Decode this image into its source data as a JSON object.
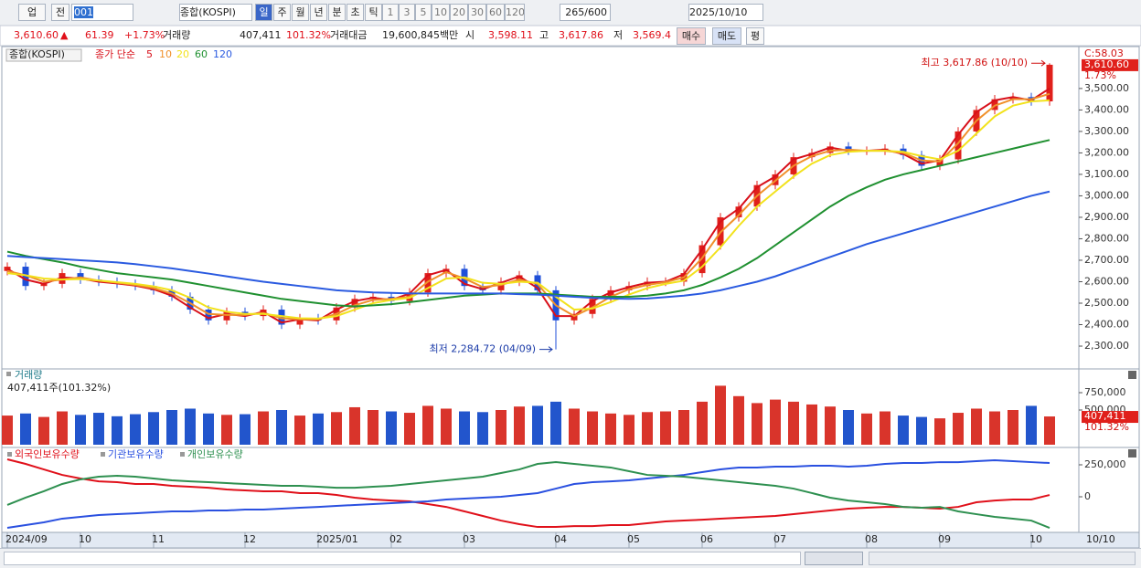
{
  "toolbar": {
    "market": "업",
    "prev": "전",
    "code": "001",
    "name": "종합(KOSPI)",
    "periods": [
      "일",
      "주",
      "월",
      "년",
      "분",
      "초",
      "틱"
    ],
    "intervals": [
      "1",
      "3",
      "5",
      "10",
      "20",
      "30",
      "60",
      "120"
    ],
    "count": "265/600",
    "date": "2025/10/10"
  },
  "quote": {
    "price": "3,610.60",
    "arrow": "▲",
    "change": "61.39",
    "change_pct": "+1.73%",
    "volume_label": "거래량",
    "volume": "407,411",
    "volume_ratio": "101.32%",
    "amount_label": "거래대금",
    "amount": "19,600,845백만",
    "open_label": "시",
    "open": "3,598.11",
    "high_label": "고",
    "high": "3,617.86",
    "low_label": "저",
    "low": "3,569.4",
    "buy": "매수",
    "sell": "매도",
    "avg": "평"
  },
  "axis_end_label": "10/10",
  "chart_data": [
    {
      "type": "candlestick",
      "title": "종합(KOSPI)",
      "ma_label": "종가 단순",
      "categories": [
        "2024/09",
        null,
        null,
        null,
        "10",
        null,
        null,
        null,
        "11",
        null,
        null,
        null,
        null,
        "12",
        null,
        null,
        null,
        "2025/01",
        null,
        null,
        null,
        "02",
        null,
        null,
        null,
        "03",
        null,
        null,
        null,
        null,
        "04",
        null,
        null,
        null,
        "05",
        null,
        null,
        null,
        "06",
        null,
        null,
        null,
        "07",
        null,
        null,
        null,
        null,
        "08",
        null,
        null,
        null,
        "09",
        null,
        null,
        null,
        null,
        "10",
        null
      ],
      "open": [
        2650,
        2670,
        2580,
        2590,
        2640,
        2610,
        2600,
        2590,
        2580,
        2560,
        2530,
        2470,
        2420,
        2460,
        2440,
        2470,
        2400,
        2430,
        2420,
        2480,
        2520,
        2530,
        2510,
        2550,
        2640,
        2660,
        2580,
        2560,
        2600,
        2630,
        2560,
        2420,
        2450,
        2520,
        2560,
        2580,
        2600,
        2600,
        2640,
        2770,
        2900,
        2950,
        3050,
        3100,
        3180,
        3200,
        3230,
        3210,
        3210,
        3220,
        3190,
        3140,
        3170,
        3300,
        3400,
        3450,
        3460,
        3440
      ],
      "high": [
        2690,
        2690,
        2610,
        2660,
        2660,
        2630,
        2620,
        2610,
        2600,
        2580,
        2550,
        2490,
        2480,
        2480,
        2490,
        2490,
        2450,
        2450,
        2500,
        2540,
        2550,
        2550,
        2570,
        2660,
        2680,
        2680,
        2600,
        2620,
        2650,
        2650,
        2580,
        2470,
        2540,
        2580,
        2600,
        2620,
        2620,
        2660,
        2790,
        2920,
        2970,
        3070,
        3120,
        3200,
        3220,
        3250,
        3250,
        3230,
        3240,
        3240,
        3210,
        3190,
        3320,
        3420,
        3470,
        3480,
        3480,
        3617.86
      ],
      "low": [
        2630,
        2560,
        2560,
        2570,
        2590,
        2580,
        2570,
        2560,
        2540,
        2510,
        2450,
        2400,
        2400,
        2420,
        2420,
        2380,
        2380,
        2400,
        2400,
        2460,
        2500,
        2490,
        2490,
        2530,
        2620,
        2560,
        2540,
        2540,
        2580,
        2540,
        2284.72,
        2400,
        2430,
        2500,
        2540,
        2560,
        2580,
        2580,
        2620,
        2750,
        2880,
        2930,
        3030,
        3080,
        3160,
        3180,
        3190,
        3190,
        3190,
        3170,
        3120,
        3120,
        3150,
        3280,
        3380,
        3430,
        3420,
        3420
      ],
      "close": [
        2670,
        2580,
        2590,
        2640,
        2610,
        2600,
        2590,
        2580,
        2560,
        2530,
        2470,
        2420,
        2460,
        2440,
        2470,
        2400,
        2430,
        2420,
        2480,
        2520,
        2530,
        2510,
        2550,
        2640,
        2660,
        2580,
        2560,
        2600,
        2630,
        2560,
        2420,
        2450,
        2520,
        2560,
        2580,
        2600,
        2600,
        2640,
        2770,
        2900,
        2950,
        3050,
        3100,
        3180,
        3200,
        3230,
        3210,
        3210,
        3220,
        3190,
        3140,
        3170,
        3300,
        3400,
        3450,
        3460,
        3440,
        3610.6
      ],
      "up_color": "#e0201b",
      "down_color": "#1f4fd8",
      "series": [
        {
          "name": "5",
          "color": "#d8101a",
          "values": [
            2660,
            2610,
            2590,
            2620,
            2615,
            2600,
            2592,
            2582,
            2565,
            2535,
            2480,
            2430,
            2450,
            2440,
            2460,
            2410,
            2425,
            2420,
            2470,
            2510,
            2525,
            2515,
            2545,
            2630,
            2655,
            2590,
            2565,
            2595,
            2625,
            2570,
            2440,
            2440,
            2510,
            2550,
            2575,
            2595,
            2600,
            2635,
            2750,
            2880,
            2940,
            3040,
            3090,
            3170,
            3195,
            3225,
            3210,
            3210,
            3215,
            3195,
            3150,
            3165,
            3285,
            3390,
            3445,
            3460,
            3445,
            3500
          ]
        },
        {
          "name": "10",
          "color": "#f0902a",
          "values": [
            2650,
            2630,
            2600,
            2610,
            2620,
            2605,
            2595,
            2585,
            2570,
            2545,
            2500,
            2450,
            2445,
            2445,
            2455,
            2430,
            2425,
            2425,
            2450,
            2490,
            2515,
            2520,
            2530,
            2600,
            2645,
            2615,
            2575,
            2585,
            2610,
            2590,
            2490,
            2440,
            2480,
            2530,
            2565,
            2585,
            2598,
            2620,
            2710,
            2830,
            2910,
            3000,
            3070,
            3140,
            3185,
            3210,
            3215,
            3210,
            3210,
            3200,
            3165,
            3160,
            3245,
            3350,
            3420,
            3450,
            3450,
            3475
          ]
        },
        {
          "name": "20",
          "color": "#f2e21c",
          "values": [
            2640,
            2630,
            2615,
            2610,
            2612,
            2606,
            2598,
            2590,
            2578,
            2560,
            2525,
            2480,
            2460,
            2450,
            2450,
            2440,
            2430,
            2428,
            2440,
            2470,
            2500,
            2515,
            2525,
            2570,
            2615,
            2620,
            2595,
            2590,
            2600,
            2595,
            2530,
            2470,
            2475,
            2505,
            2540,
            2570,
            2590,
            2605,
            2670,
            2760,
            2860,
            2950,
            3020,
            3090,
            3150,
            3190,
            3205,
            3210,
            3210,
            3205,
            3185,
            3170,
            3210,
            3290,
            3370,
            3420,
            3440,
            3445
          ]
        },
        {
          "name": "60",
          "color": "#1f9030",
          "values": [
            2740,
            2720,
            2705,
            2690,
            2670,
            2655,
            2640,
            2630,
            2620,
            2610,
            2595,
            2580,
            2565,
            2550,
            2535,
            2520,
            2510,
            2500,
            2490,
            2485,
            2490,
            2495,
            2505,
            2515,
            2525,
            2535,
            2540,
            2545,
            2545,
            2545,
            2540,
            2535,
            2530,
            2530,
            2530,
            2535,
            2545,
            2560,
            2585,
            2620,
            2660,
            2710,
            2770,
            2830,
            2890,
            2950,
            3000,
            3040,
            3075,
            3100,
            3120,
            3140,
            3160,
            3180,
            3200,
            3220,
            3240,
            3260
          ]
        },
        {
          "name": "120",
          "color": "#2a5ae0",
          "values": [
            2720,
            2715,
            2710,
            2705,
            2700,
            2695,
            2690,
            2682,
            2672,
            2662,
            2650,
            2638,
            2625,
            2612,
            2600,
            2590,
            2580,
            2570,
            2560,
            2555,
            2550,
            2548,
            2545,
            2545,
            2545,
            2545,
            2545,
            2545,
            2542,
            2540,
            2535,
            2530,
            2525,
            2522,
            2520,
            2522,
            2528,
            2535,
            2545,
            2560,
            2580,
            2600,
            2625,
            2655,
            2685,
            2715,
            2745,
            2775,
            2800,
            2825,
            2850,
            2875,
            2900,
            2925,
            2950,
            2975,
            3000,
            3020
          ]
        }
      ],
      "ylim": [
        2198,
        3691
      ],
      "yticks": [
        {
          "value": 2300,
          "label": "2,300.00"
        },
        {
          "value": 2400,
          "label": "2,400.00"
        },
        {
          "value": 2500,
          "label": "2,500.00"
        },
        {
          "value": 2600,
          "label": "2,600.00"
        },
        {
          "value": 2700,
          "label": "2,700.00"
        },
        {
          "value": 2800,
          "label": "2,800.00"
        },
        {
          "value": 2900,
          "label": "2,900.00"
        },
        {
          "value": 3000,
          "label": "3,000.00"
        },
        {
          "value": 3100,
          "label": "3,100.00"
        },
        {
          "value": 3200,
          "label": "3,200.00"
        },
        {
          "value": 3300,
          "label": "3,300.00"
        },
        {
          "value": 3400,
          "label": "3,400.00"
        },
        {
          "value": 3500,
          "label": "3,500.00"
        }
      ],
      "last_label": "3,610.60",
      "last_change": "1.73%",
      "corner_label": "C:58.03",
      "annotations": [
        "최고 3,617.86 (10/10)",
        "최저 2,284.72 (04/09)"
      ]
    },
    {
      "type": "bar",
      "title": "거래량",
      "subtitle": "407,411주(101.32%)",
      "values": [
        420000,
        450000,
        400000,
        480000,
        430000,
        460000,
        410000,
        440000,
        470000,
        500000,
        520000,
        450000,
        430000,
        440000,
        480000,
        500000,
        420000,
        450000,
        470000,
        540000,
        500000,
        480000,
        460000,
        560000,
        520000,
        480000,
        470000,
        500000,
        550000,
        560000,
        620000,
        520000,
        480000,
        450000,
        430000,
        470000,
        480000,
        500000,
        620000,
        850000,
        700000,
        600000,
        650000,
        620000,
        580000,
        550000,
        500000,
        450000,
        480000,
        420000,
        400000,
        380000,
        460000,
        520000,
        480000,
        500000,
        560000,
        407411
      ],
      "ylim": [
        0,
        1000000
      ],
      "yticks": [
        {
          "value": 750000,
          "label": "750,000"
        },
        {
          "value": 500000,
          "label": "500,000"
        }
      ],
      "last_label": "407,411",
      "last_ratio": "101.32%"
    },
    {
      "type": "line",
      "series": [
        {
          "name": "외국인보유수량",
          "color": "#e0101a",
          "values": [
            293000,
            257000,
            214000,
            171000,
            143000,
            121000,
            114000,
            100000,
            100000,
            86000,
            79000,
            71000,
            57000,
            50000,
            43000,
            43000,
            29000,
            29000,
            14000,
            -7000,
            -21000,
            -29000,
            -36000,
            -57000,
            -79000,
            -114000,
            -150000,
            -186000,
            -214000,
            -236000,
            -236000,
            -229000,
            -229000,
            -221000,
            -221000,
            -207000,
            -193000,
            -186000,
            -179000,
            -171000,
            -164000,
            -157000,
            -150000,
            -136000,
            -121000,
            -107000,
            -93000,
            -86000,
            -79000,
            -79000,
            -86000,
            -93000,
            -79000,
            -43000,
            -29000,
            -21000,
            -21000,
            14000
          ]
        },
        {
          "name": "기관보유수량",
          "color": "#2a50e0",
          "values": [
            -243000,
            -221000,
            -200000,
            -171000,
            -157000,
            -143000,
            -136000,
            -129000,
            -121000,
            -114000,
            -114000,
            -107000,
            -107000,
            -100000,
            -100000,
            -93000,
            -86000,
            -79000,
            -71000,
            -64000,
            -57000,
            -50000,
            -43000,
            -36000,
            -21000,
            -14000,
            -7000,
            0,
            14000,
            29000,
            64000,
            100000,
            114000,
            121000,
            129000,
            143000,
            157000,
            171000,
            193000,
            214000,
            229000,
            229000,
            236000,
            236000,
            243000,
            243000,
            236000,
            243000,
            257000,
            264000,
            264000,
            271000,
            271000,
            279000,
            286000,
            279000,
            271000,
            264000
          ]
        },
        {
          "name": "개인보유수량",
          "color": "#2e9050",
          "values": [
            -64000,
            -7000,
            43000,
            100000,
            136000,
            157000,
            164000,
            157000,
            143000,
            129000,
            121000,
            114000,
            107000,
            100000,
            93000,
            86000,
            86000,
            79000,
            71000,
            71000,
            79000,
            86000,
            100000,
            114000,
            129000,
            143000,
            157000,
            186000,
            214000,
            257000,
            271000,
            257000,
            243000,
            229000,
            200000,
            171000,
            164000,
            157000,
            143000,
            129000,
            114000,
            100000,
            86000,
            64000,
            29000,
            -7000,
            -29000,
            -43000,
            -57000,
            -79000,
            -86000,
            -79000,
            -114000,
            -136000,
            -157000,
            -171000,
            -186000,
            -243000
          ]
        }
      ],
      "ylim": [
        -257000,
        350000
      ],
      "yticks": [
        {
          "value": 250000,
          "label": "250,000"
        },
        0
      ]
    }
  ]
}
